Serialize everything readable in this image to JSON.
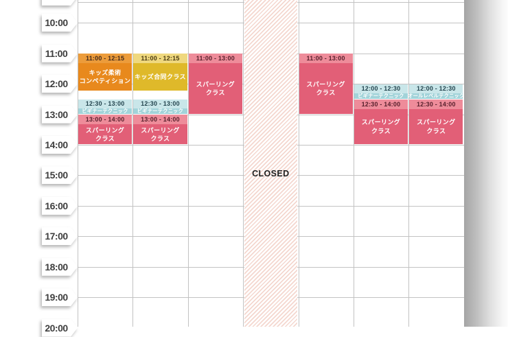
{
  "schedule": {
    "closed_label": "CLOSED",
    "closed_day_index": 3,
    "days": 7,
    "time_labels": [
      "10:00",
      "11:00",
      "12:00",
      "13:00",
      "14:00",
      "15:00",
      "16:00",
      "17:00",
      "18:00",
      "19:00",
      "20:00"
    ],
    "events": [
      {
        "day": 0,
        "start": "11:00",
        "end": "12:15",
        "color": "orange",
        "time_label": "11:00 - 12:15",
        "title_lines": [
          "キッズ柔術",
          "コンペティション"
        ],
        "compact": false
      },
      {
        "day": 0,
        "start": "12:30",
        "end": "13:00",
        "color": "teal",
        "time_label": "12:30 - 13:00",
        "title_lines": [
          "ビギナーテクニック"
        ],
        "compact": true
      },
      {
        "day": 0,
        "start": "13:00",
        "end": "14:00",
        "color": "pink",
        "time_label": "13:00 - 14:00",
        "title_lines": [
          "スパーリング",
          "クラス"
        ],
        "compact": false
      },
      {
        "day": 1,
        "start": "11:00",
        "end": "12:15",
        "color": "yellow",
        "time_label": "11:00 - 12:15",
        "title_lines": [
          "キッズ合同クラス"
        ],
        "compact": false
      },
      {
        "day": 1,
        "start": "12:30",
        "end": "13:00",
        "color": "teal",
        "time_label": "12:30 - 13:00",
        "title_lines": [
          "ビギナーテクニック"
        ],
        "compact": true
      },
      {
        "day": 1,
        "start": "13:00",
        "end": "14:00",
        "color": "pink",
        "time_label": "13:00 - 14:00",
        "title_lines": [
          "スパーリング",
          "クラス"
        ],
        "compact": false
      },
      {
        "day": 2,
        "start": "11:00",
        "end": "13:00",
        "color": "pink",
        "time_label": "11:00 - 13:00",
        "title_lines": [
          "スパーリング",
          "クラス"
        ],
        "compact": false
      },
      {
        "day": 4,
        "start": "11:00",
        "end": "13:00",
        "color": "pink",
        "time_label": "11:00 - 13:00",
        "title_lines": [
          "スパーリング",
          "クラス"
        ],
        "compact": false
      },
      {
        "day": 5,
        "start": "12:00",
        "end": "12:30",
        "color": "teal",
        "time_label": "12:00 - 12:30",
        "title_lines": [
          "ビギナーテクニック"
        ],
        "compact": true
      },
      {
        "day": 5,
        "start": "12:30",
        "end": "14:00",
        "color": "pink",
        "time_label": "12:30 - 14:00",
        "title_lines": [
          "スパーリング",
          "クラス"
        ],
        "compact": false
      },
      {
        "day": 6,
        "start": "12:00",
        "end": "12:30",
        "color": "teal",
        "time_label": "12:00 - 12:30",
        "title_lines": [
          "オールレベルテクニック"
        ],
        "compact": true
      },
      {
        "day": 6,
        "start": "12:30",
        "end": "14:00",
        "color": "pink",
        "time_label": "12:30 - 14:00",
        "title_lines": [
          "スパーリング",
          "クラス"
        ],
        "compact": false
      }
    ],
    "colors": {
      "orange": {
        "header": "#EC9C3B",
        "body": "#E8891D",
        "header_text": "#42291A",
        "body_text": "#FFFFFF"
      },
      "yellow": {
        "header": "#EFD87E",
        "body": "#DFB92A",
        "header_text": "#4A3A12",
        "body_text": "#FFFFFF"
      },
      "pink": {
        "header": "#EE8C9A",
        "body": "#E25F77",
        "header_text": "#57202C",
        "body_text": "#FFFFFF"
      },
      "teal": {
        "header": "#C9E6E9",
        "body": "#A2D3D9",
        "header_text": "#23444E",
        "body_text": "#FFFFFF"
      }
    },
    "stripe_color": "#F4D7CF",
    "grid_line_color": "#C2C2C2"
  }
}
